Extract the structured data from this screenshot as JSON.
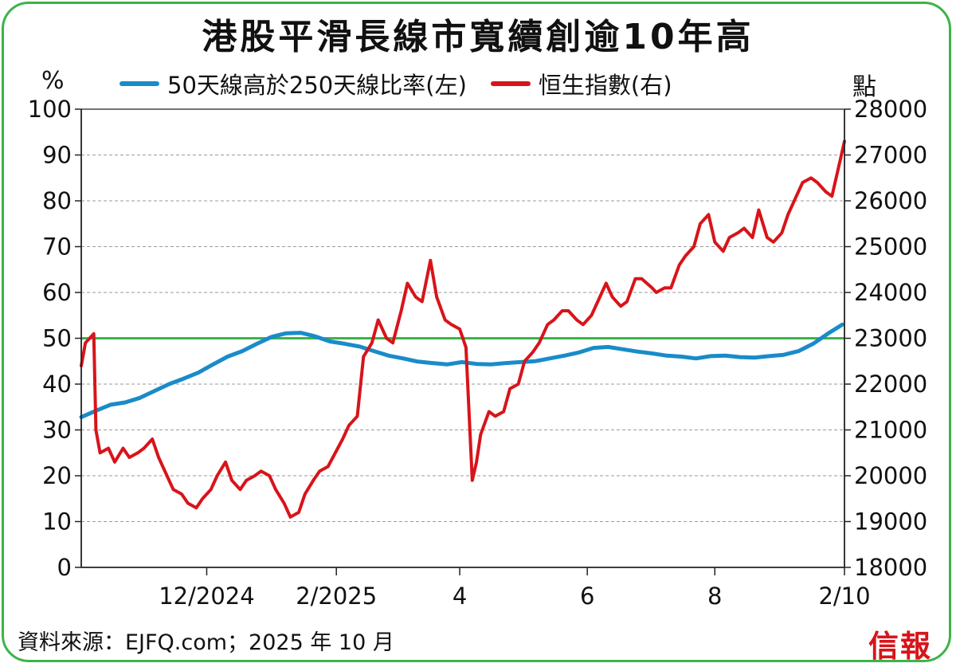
{
  "chart_data": {
    "type": "line",
    "title": "港股平滑長線市寬續創逾10年高",
    "left_unit": "%",
    "right_unit": "點",
    "left_axis": {
      "ylim": [
        0,
        100
      ],
      "ticks": [
        0,
        10,
        20,
        30,
        40,
        50,
        60,
        70,
        80,
        90,
        100
      ]
    },
    "right_axis": {
      "ylim": [
        18000,
        28000
      ],
      "ticks": [
        18000,
        19000,
        20000,
        21000,
        22000,
        23000,
        24000,
        25000,
        26000,
        27000,
        28000
      ]
    },
    "x_ticks": [
      {
        "label": "12/2024",
        "date": "2024-12-01"
      },
      {
        "label": "2/2025",
        "date": "2025-02-01"
      },
      {
        "label": "4",
        "date": "2025-04-01"
      },
      {
        "label": "6",
        "date": "2025-06-01"
      },
      {
        "label": "8",
        "date": "2025-08-01"
      },
      {
        "label": "2/10",
        "date": "2025-10-02"
      }
    ],
    "xlim": [
      "2024-10-02",
      "2025-10-02"
    ],
    "reference_line": {
      "axis": "left",
      "value": 50,
      "color": "#3cb44a"
    },
    "grid": true,
    "legend_position": "top",
    "series": [
      {
        "name": "50天線高於250天線比率(左)",
        "axis": "left",
        "color": "#1a8bc9",
        "points": [
          [
            "2024-10-02",
            32.8
          ],
          [
            "2024-10-09",
            34.2
          ],
          [
            "2024-10-16",
            35.5
          ],
          [
            "2024-10-23",
            36.0
          ],
          [
            "2024-10-30",
            37.0
          ],
          [
            "2024-11-06",
            38.5
          ],
          [
            "2024-11-13",
            40.0
          ],
          [
            "2024-11-20",
            41.2
          ],
          [
            "2024-11-27",
            42.5
          ],
          [
            "2024-12-04",
            44.3
          ],
          [
            "2024-12-11",
            46.0
          ],
          [
            "2024-12-18",
            47.2
          ],
          [
            "2024-12-25",
            48.8
          ],
          [
            "2025-01-01",
            50.3
          ],
          [
            "2025-01-08",
            51.1
          ],
          [
            "2025-01-15",
            51.2
          ],
          [
            "2025-01-22",
            50.4
          ],
          [
            "2025-01-29",
            49.3
          ],
          [
            "2025-02-05",
            48.8
          ],
          [
            "2025-02-12",
            48.2
          ],
          [
            "2025-02-19",
            47.2
          ],
          [
            "2025-02-26",
            46.2
          ],
          [
            "2025-03-05",
            45.6
          ],
          [
            "2025-03-12",
            44.9
          ],
          [
            "2025-03-19",
            44.6
          ],
          [
            "2025-03-26",
            44.3
          ],
          [
            "2025-04-02",
            44.8
          ],
          [
            "2025-04-09",
            44.4
          ],
          [
            "2025-04-16",
            44.3
          ],
          [
            "2025-04-23",
            44.6
          ],
          [
            "2025-04-30",
            44.8
          ],
          [
            "2025-05-07",
            45.0
          ],
          [
            "2025-05-14",
            45.6
          ],
          [
            "2025-05-21",
            46.2
          ],
          [
            "2025-05-28",
            46.9
          ],
          [
            "2025-06-04",
            47.9
          ],
          [
            "2025-06-11",
            48.1
          ],
          [
            "2025-06-18",
            47.6
          ],
          [
            "2025-06-25",
            47.1
          ],
          [
            "2025-07-02",
            46.7
          ],
          [
            "2025-07-09",
            46.2
          ],
          [
            "2025-07-16",
            46.0
          ],
          [
            "2025-07-23",
            45.6
          ],
          [
            "2025-07-30",
            46.1
          ],
          [
            "2025-08-06",
            46.2
          ],
          [
            "2025-08-13",
            45.9
          ],
          [
            "2025-08-20",
            45.8
          ],
          [
            "2025-08-27",
            46.1
          ],
          [
            "2025-09-03",
            46.4
          ],
          [
            "2025-09-10",
            47.2
          ],
          [
            "2025-09-17",
            48.8
          ],
          [
            "2025-09-24",
            51.0
          ],
          [
            "2025-10-01",
            53.0
          ]
        ]
      },
      {
        "name": "恒生指數(右)",
        "axis": "right",
        "color": "#d8141a",
        "points": [
          [
            "2024-10-02",
            22400
          ],
          [
            "2024-10-04",
            22900
          ],
          [
            "2024-10-08",
            23100
          ],
          [
            "2024-10-09",
            21000
          ],
          [
            "2024-10-11",
            20500
          ],
          [
            "2024-10-15",
            20600
          ],
          [
            "2024-10-18",
            20300
          ],
          [
            "2024-10-22",
            20600
          ],
          [
            "2024-10-25",
            20400
          ],
          [
            "2024-10-29",
            20500
          ],
          [
            "2024-11-01",
            20600
          ],
          [
            "2024-11-05",
            20800
          ],
          [
            "2024-11-08",
            20400
          ],
          [
            "2024-11-12",
            20000
          ],
          [
            "2024-11-15",
            19700
          ],
          [
            "2024-11-19",
            19600
          ],
          [
            "2024-11-22",
            19400
          ],
          [
            "2024-11-26",
            19300
          ],
          [
            "2024-11-29",
            19500
          ],
          [
            "2024-12-03",
            19700
          ],
          [
            "2024-12-06",
            20000
          ],
          [
            "2024-12-10",
            20300
          ],
          [
            "2024-12-13",
            19900
          ],
          [
            "2024-12-17",
            19700
          ],
          [
            "2024-12-20",
            19900
          ],
          [
            "2024-12-24",
            20000
          ],
          [
            "2024-12-27",
            20100
          ],
          [
            "2024-12-31",
            20000
          ],
          [
            "2025-01-03",
            19700
          ],
          [
            "2025-01-07",
            19400
          ],
          [
            "2025-01-10",
            19100
          ],
          [
            "2025-01-14",
            19200
          ],
          [
            "2025-01-17",
            19600
          ],
          [
            "2025-01-21",
            19900
          ],
          [
            "2025-01-24",
            20100
          ],
          [
            "2025-01-28",
            20200
          ],
          [
            "2025-02-04",
            20800
          ],
          [
            "2025-02-07",
            21100
          ],
          [
            "2025-02-11",
            21300
          ],
          [
            "2025-02-14",
            22600
          ],
          [
            "2025-02-18",
            22900
          ],
          [
            "2025-02-21",
            23400
          ],
          [
            "2025-02-25",
            23000
          ],
          [
            "2025-02-28",
            22900
          ],
          [
            "2025-03-04",
            23600
          ],
          [
            "2025-03-07",
            24200
          ],
          [
            "2025-03-11",
            23900
          ],
          [
            "2025-03-14",
            23800
          ],
          [
            "2025-03-18",
            24700
          ],
          [
            "2025-03-21",
            23900
          ],
          [
            "2025-03-25",
            23400
          ],
          [
            "2025-03-28",
            23300
          ],
          [
            "2025-04-01",
            23200
          ],
          [
            "2025-04-04",
            22800
          ],
          [
            "2025-04-07",
            19900
          ],
          [
            "2025-04-09",
            20300
          ],
          [
            "2025-04-11",
            20900
          ],
          [
            "2025-04-15",
            21400
          ],
          [
            "2025-04-18",
            21300
          ],
          [
            "2025-04-22",
            21400
          ],
          [
            "2025-04-25",
            21900
          ],
          [
            "2025-04-29",
            22000
          ],
          [
            "2025-05-02",
            22500
          ],
          [
            "2025-05-06",
            22700
          ],
          [
            "2025-05-09",
            22900
          ],
          [
            "2025-05-13",
            23300
          ],
          [
            "2025-05-16",
            23400
          ],
          [
            "2025-05-20",
            23600
          ],
          [
            "2025-05-23",
            23600
          ],
          [
            "2025-05-27",
            23400
          ],
          [
            "2025-05-30",
            23300
          ],
          [
            "2025-06-03",
            23500
          ],
          [
            "2025-06-06",
            23800
          ],
          [
            "2025-06-10",
            24200
          ],
          [
            "2025-06-13",
            23900
          ],
          [
            "2025-06-17",
            23700
          ],
          [
            "2025-06-20",
            23800
          ],
          [
            "2025-06-24",
            24300
          ],
          [
            "2025-06-27",
            24300
          ],
          [
            "2025-07-02",
            24100
          ],
          [
            "2025-07-04",
            24000
          ],
          [
            "2025-07-08",
            24100
          ],
          [
            "2025-07-11",
            24100
          ],
          [
            "2025-07-15",
            24600
          ],
          [
            "2025-07-18",
            24800
          ],
          [
            "2025-07-22",
            25000
          ],
          [
            "2025-07-25",
            25500
          ],
          [
            "2025-07-29",
            25700
          ],
          [
            "2025-08-01",
            25100
          ],
          [
            "2025-08-05",
            24900
          ],
          [
            "2025-08-08",
            25200
          ],
          [
            "2025-08-12",
            25300
          ],
          [
            "2025-08-15",
            25400
          ],
          [
            "2025-08-19",
            25200
          ],
          [
            "2025-08-22",
            25800
          ],
          [
            "2025-08-26",
            25200
          ],
          [
            "2025-08-29",
            25100
          ],
          [
            "2025-09-02",
            25300
          ],
          [
            "2025-09-05",
            25700
          ],
          [
            "2025-09-09",
            26100
          ],
          [
            "2025-09-12",
            26400
          ],
          [
            "2025-09-16",
            26500
          ],
          [
            "2025-09-19",
            26400
          ],
          [
            "2025-09-23",
            26200
          ],
          [
            "2025-09-26",
            26100
          ],
          [
            "2025-09-30",
            26900
          ],
          [
            "2025-10-02",
            27300
          ]
        ]
      }
    ]
  },
  "legend": {
    "item1": "50天線高於250天線比率(左)",
    "item2": "恒生指數(右)"
  },
  "source": "資料來源：EJFQ.com；2025 年 10 月",
  "logo_text": "信報",
  "colors": {
    "frame": "#3cb44a",
    "series_blue": "#1a8bc9",
    "series_red": "#d8141a",
    "reference": "#3cb44a"
  }
}
